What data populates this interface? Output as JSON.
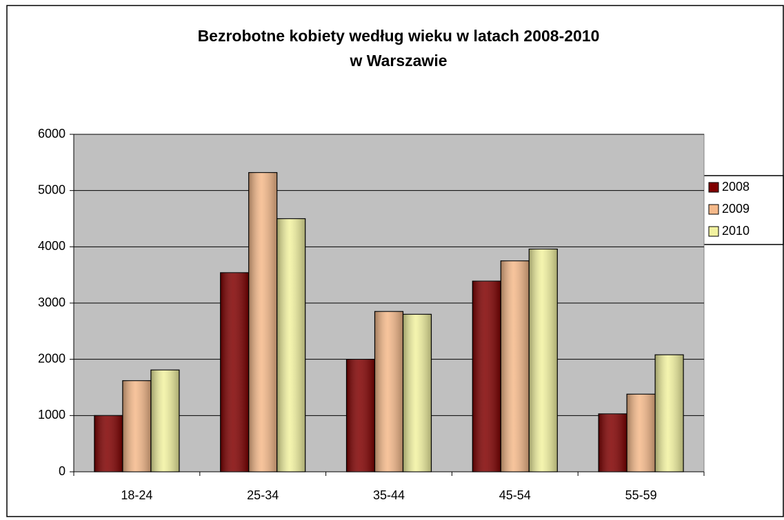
{
  "chart_data": {
    "type": "bar",
    "title": [
      "Bezrobotne kobiety według wieku w latach 2008-2010",
      "w Warszawie"
    ],
    "categories": [
      "18-24",
      "25-34",
      "35-44",
      "45-54",
      "55-59"
    ],
    "series": [
      {
        "name": "2008",
        "color": "#800000",
        "values": [
          1000,
          3540,
          2000,
          3390,
          1030
        ]
      },
      {
        "name": "2009",
        "color": "#f5b98a",
        "values": [
          1620,
          5320,
          2850,
          3750,
          1380
        ]
      },
      {
        "name": "2010",
        "color": "#f2f2a0",
        "values": [
          1810,
          4500,
          2800,
          3960,
          2080
        ]
      }
    ],
    "ylim": [
      0,
      6000
    ],
    "yticks": [
      0,
      1000,
      2000,
      3000,
      4000,
      5000,
      6000
    ],
    "grid": true,
    "legend": "right",
    "plot_background": "#c0c0c0"
  }
}
